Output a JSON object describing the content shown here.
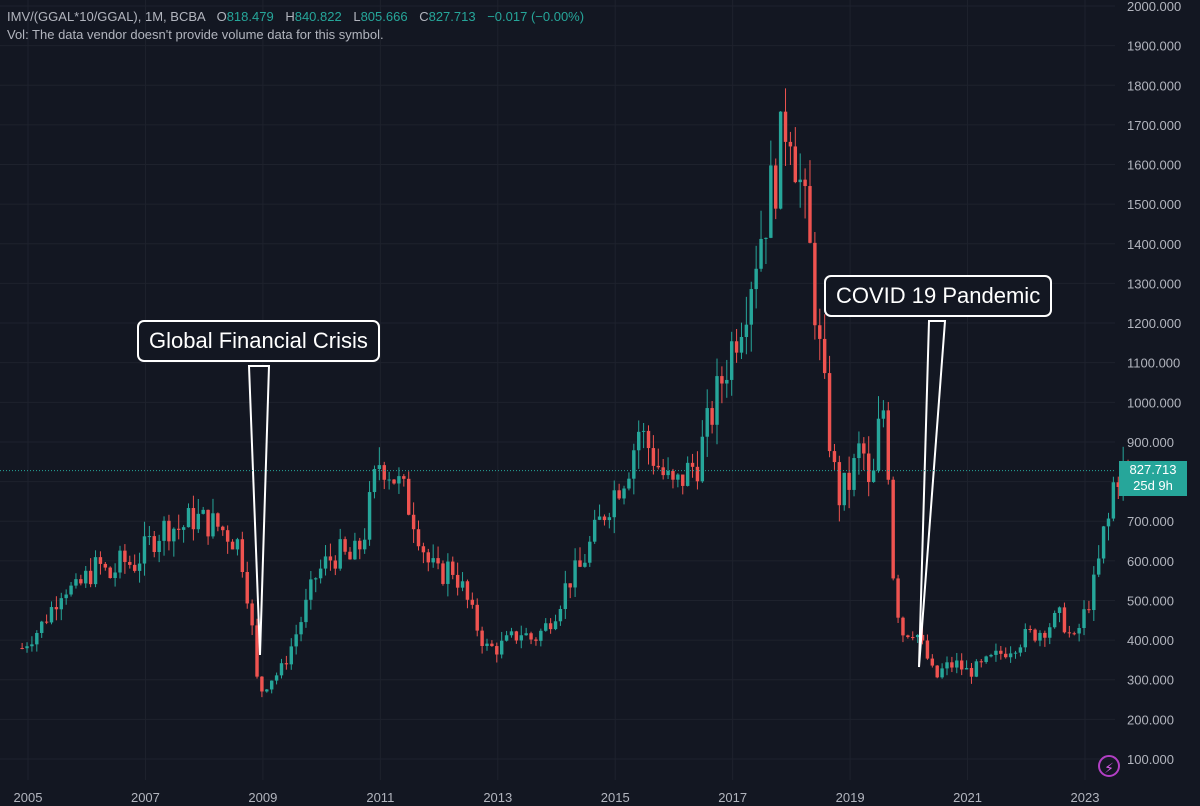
{
  "legend": {
    "symbol": "IMV/(GGAL*10/GGAL), 1M, BCBA",
    "o_label": "O",
    "o_value": "818.479",
    "h_label": "H",
    "h_value": "840.822",
    "l_label": "L",
    "l_value": "805.666",
    "c_label": "C",
    "c_value": "827.713",
    "change": "−0.017 (−0.00%)",
    "volume_note": "Vol: The data vendor doesn't provide volume data for this symbol."
  },
  "annotations": {
    "gfc": "Global Financial Crisis",
    "covid": "COVID 19 Pandemic"
  },
  "price_tag": {
    "price": "827.713",
    "countdown": "25d 9h"
  },
  "colors": {
    "up": "#26a69a",
    "down": "#ef5350",
    "bg": "#131722",
    "grid": "#1e222d",
    "text": "#b2b5be"
  },
  "icons": {
    "bolt": "lightning-icon"
  },
  "chart_data": {
    "type": "candlestick",
    "interval": "1M",
    "ylim": [
      50,
      2000
    ],
    "y_ticks": [
      "2000.000",
      "1900.000",
      "1800.000",
      "1700.000",
      "1600.000",
      "1500.000",
      "1400.000",
      "1300.000",
      "1200.000",
      "1100.000",
      "1000.000",
      "900.000",
      "800.000",
      "700.000",
      "600.000",
      "500.000",
      "400.000",
      "300.000",
      "200.000",
      "100.000"
    ],
    "x_ticks": [
      "2005",
      "2007",
      "2009",
      "2011",
      "2013",
      "2015",
      "2017",
      "2019",
      "2021",
      "2023"
    ],
    "x_range": [
      2004.9,
      2023.75
    ],
    "last_price": 827.713,
    "closes": [
      [
        2004.9,
        380
      ],
      [
        2005.0,
        400
      ],
      [
        2005.2,
        430
      ],
      [
        2005.4,
        480
      ],
      [
        2005.6,
        540
      ],
      [
        2005.8,
        520
      ],
      [
        2006.0,
        560
      ],
      [
        2006.2,
        590
      ],
      [
        2006.4,
        560
      ],
      [
        2006.6,
        600
      ],
      [
        2006.8,
        590
      ],
      [
        2007.0,
        630
      ],
      [
        2007.2,
        670
      ],
      [
        2007.4,
        690
      ],
      [
        2007.6,
        680
      ],
      [
        2007.8,
        710
      ],
      [
        2008.0,
        700
      ],
      [
        2008.2,
        690
      ],
      [
        2008.4,
        670
      ],
      [
        2008.6,
        640
      ],
      [
        2008.7,
        560
      ],
      [
        2008.8,
        450
      ],
      [
        2008.9,
        300
      ],
      [
        2009.0,
        270
      ],
      [
        2009.1,
        300
      ],
      [
        2009.3,
        320
      ],
      [
        2009.5,
        390
      ],
      [
        2009.7,
        470
      ],
      [
        2009.9,
        560
      ],
      [
        2010.1,
        600
      ],
      [
        2010.3,
        620
      ],
      [
        2010.5,
        600
      ],
      [
        2010.7,
        650
      ],
      [
        2010.9,
        800
      ],
      [
        2011.0,
        860
      ],
      [
        2011.2,
        820
      ],
      [
        2011.4,
        770
      ],
      [
        2011.6,
        700
      ],
      [
        2011.8,
        600
      ],
      [
        2012.0,
        560
      ],
      [
        2012.2,
        590
      ],
      [
        2012.4,
        530
      ],
      [
        2012.6,
        450
      ],
      [
        2012.8,
        380
      ],
      [
        2013.0,
        380
      ],
      [
        2013.2,
        400
      ],
      [
        2013.4,
        420
      ],
      [
        2013.6,
        400
      ],
      [
        2013.8,
        430
      ],
      [
        2014.0,
        480
      ],
      [
        2014.2,
        550
      ],
      [
        2014.4,
        580
      ],
      [
        2014.6,
        650
      ],
      [
        2014.8,
        720
      ],
      [
        2015.0,
        780
      ],
      [
        2015.2,
        830
      ],
      [
        2015.4,
        930
      ],
      [
        2015.6,
        880
      ],
      [
        2015.8,
        820
      ],
      [
        2016.0,
        780
      ],
      [
        2016.2,
        820
      ],
      [
        2016.4,
        850
      ],
      [
        2016.6,
        950
      ],
      [
        2016.8,
        1050
      ],
      [
        2017.0,
        1150
      ],
      [
        2017.2,
        1250
      ],
      [
        2017.4,
        1380
      ],
      [
        2017.6,
        1500
      ],
      [
        2017.8,
        1620
      ],
      [
        2017.95,
        1760
      ],
      [
        2018.1,
        1600
      ],
      [
        2018.3,
        1400
      ],
      [
        2018.5,
        1100
      ],
      [
        2018.7,
        850
      ],
      [
        2018.8,
        760
      ],
      [
        2019.0,
        800
      ],
      [
        2019.2,
        900
      ],
      [
        2019.35,
        740
      ],
      [
        2019.5,
        950
      ],
      [
        2019.6,
        1000
      ],
      [
        2019.75,
        520
      ],
      [
        2019.9,
        420
      ],
      [
        2020.1,
        430
      ],
      [
        2020.3,
        360
      ],
      [
        2020.45,
        300
      ],
      [
        2020.6,
        330
      ],
      [
        2020.8,
        340
      ],
      [
        2021.0,
        320
      ],
      [
        2021.2,
        330
      ],
      [
        2021.4,
        350
      ],
      [
        2021.6,
        370
      ],
      [
        2021.8,
        390
      ],
      [
        2022.0,
        410
      ],
      [
        2022.2,
        420
      ],
      [
        2022.4,
        440
      ],
      [
        2022.6,
        460
      ],
      [
        2022.8,
        390
      ],
      [
        2023.0,
        470
      ],
      [
        2023.2,
        560
      ],
      [
        2023.3,
        660
      ],
      [
        2023.4,
        700
      ],
      [
        2023.5,
        810
      ],
      [
        2023.6,
        827.713
      ]
    ]
  }
}
